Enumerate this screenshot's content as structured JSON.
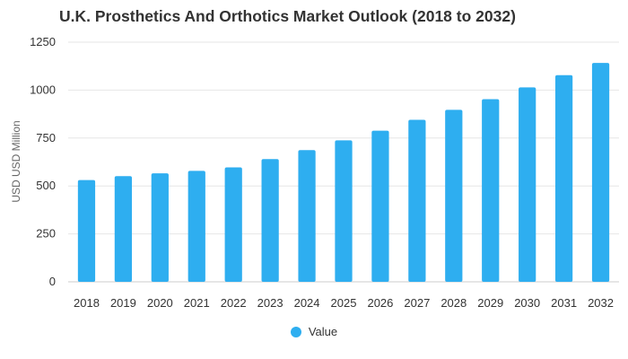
{
  "chart_data": {
    "type": "bar",
    "title": "U.K. Prosthetics And Orthotics Market Outlook (2018 to 2032)",
    "xlabel": "",
    "ylabel": "USD USD Million",
    "categories": [
      "2018",
      "2019",
      "2020",
      "2021",
      "2022",
      "2023",
      "2024",
      "2025",
      "2026",
      "2027",
      "2028",
      "2029",
      "2030",
      "2031",
      "2032"
    ],
    "series": [
      {
        "name": "Value",
        "color": "#2eaef0",
        "values": [
          531,
          551,
          566,
          579,
          597,
          640,
          687,
          738,
          788,
          845,
          897,
          953,
          1014,
          1078,
          1142
        ]
      }
    ],
    "ylim": [
      0,
      1250
    ],
    "yticks": [
      "0",
      "250",
      "500",
      "750",
      "1000",
      "1250"
    ],
    "grid": true,
    "legend_position": "bottom-center"
  }
}
